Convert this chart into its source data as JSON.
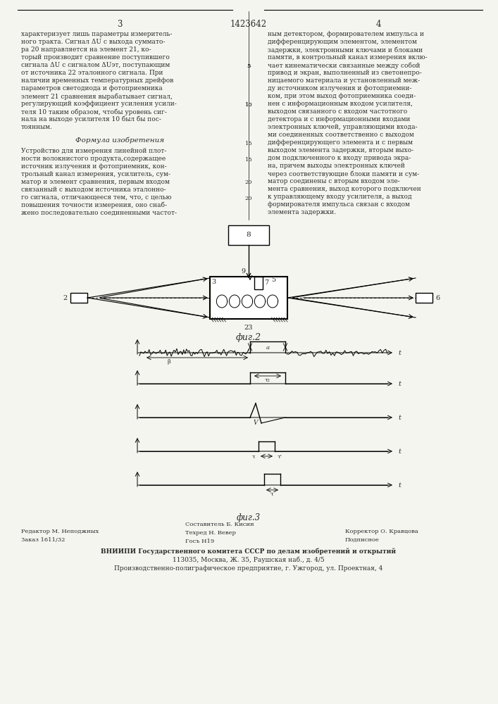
{
  "title": "1423642",
  "page_left": "3",
  "page_right": "4",
  "background_color": "#f5f5f0",
  "text_color": "#2a2a2a",
  "fig2_label": "фиг.2",
  "fig3_label": "фиг.3",
  "formula_header": "Формула изобретения",
  "col1_body": [
    "характеризует лишь параметры измеритель-",
    "ного тракта. Сигнал ΔU с выхода суммато-",
    "ра 20 направляется на элемент 21, ко-",
    "торый производит сравнение поступившего",
    "сигнала ΔU с сигналом ΔUэт, поступающим",
    "от источника 22 эталонного сигнала. При",
    "наличии временных температурных дрейфов",
    "параметров светодиода и фотоприемника",
    "элемент 21 сравнения вырабатывает сигнал,",
    "регулирующий коэффициент усиления усили-",
    "теля 10 таким образом, чтобы уровень сиг-",
    "нала на выходе усилителя 10 был бы пос-",
    "тоянным."
  ],
  "col1_claim": [
    "Устройство для измерения линейной плот-",
    "ности волокнистого продукта,содержащее",
    "источник излучения и фотоприемник, кон-",
    "трольный канал измерения, усилитель, сум-",
    "матор и элемент сравнения, первым входом",
    "связанный с выходом источника эталонно-",
    "го сигнала, отличающееся тем, что, с целью",
    "повышения точности измерения, оно снаб-",
    "жено последовательно соединенными частот-"
  ],
  "col2_body": [
    "ным детектором, формирователем импульса и",
    "дифференцирующим элементом, элементом",
    "задержки, электронными ключами и блоками",
    "памяти, в контрольный канал измерения вклю-",
    "чает кинематически связанные между собой",
    "привод и экран, выполненный из светонепро-",
    "ницаемого материала и установленный меж-",
    "ду источником излучения и фотоприемни-",
    "ком, при этом выход фотоприемника соеди-",
    "нен с информационным входом усилителя,",
    "выходом связанного с входом частотного",
    "детектора и с информационными входами",
    "электронных ключей, управляющими входа-",
    "ми соединенных соответственно с выходом",
    "дифференцирующего элемента и с первым",
    "выходом элемента задержки, вторым выхо-",
    "дом подключенного к входу привода экра-",
    "на, причем выходы электронных ключей",
    "через соответствующие блоки памяти и сум-",
    "матор соединены с вторым входом эле-",
    "мента сравнения, выход которого подключен",
    "к управляющему входу усилителя, а выход",
    "формирователя импульса связан с входом",
    "элемента задержки."
  ],
  "footer_col1_line1": "Редактор М. Неподжных",
  "footer_col1_line2": "Заказ 1611/32",
  "footer_col2_line1": "Составитель Б. Кисин",
  "footer_col2_line2": "Техред Н. Вевер",
  "footer_col2_line3": "Госъ Н19",
  "footer_col3_line1": "Корректор О. Кравцова",
  "footer_col3_line2": "Подписное",
  "footer_vniipi_1": "ВНИИПИ Государственного комитета СССР по делам изобретений и открытий",
  "footer_vniipi_2": "113035, Москва, Ж. 35, Раушская наб., д. 4/5",
  "footer_vniipi_3": "Производственно-полиграфическое предприятие, г. Ужгород, ул. Проектная, 4"
}
